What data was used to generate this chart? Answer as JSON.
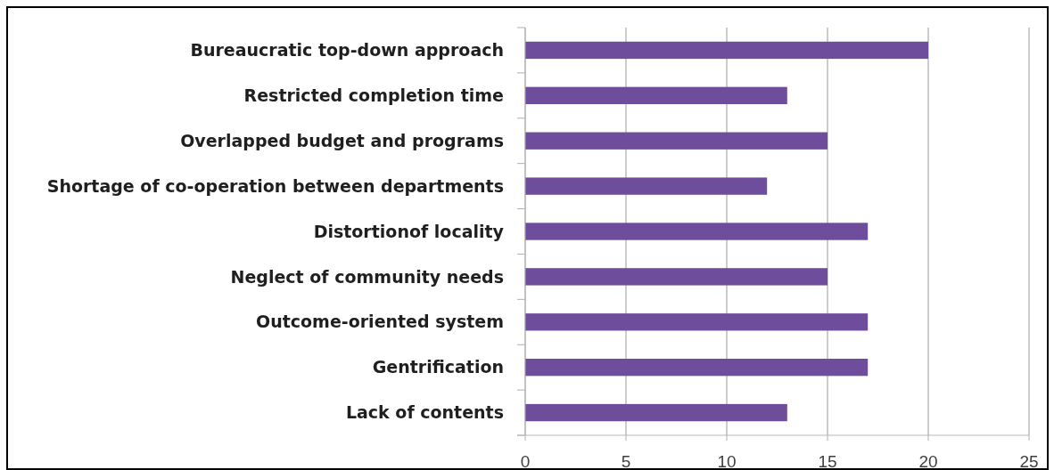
{
  "chart_data": {
    "type": "bar",
    "orientation": "horizontal",
    "categories": [
      "Bureaucratic top-down approach",
      "Restricted completion time",
      "Overlapped budget and programs",
      "Shortage of co-operation between departments",
      "Distortionof locality",
      "Neglect of community needs",
      "Outcome-oriented system",
      "Gentrification",
      "Lack of contents"
    ],
    "values": [
      20,
      13,
      15,
      12,
      17,
      15,
      17,
      17,
      13
    ],
    "color": "#6e4e9c",
    "xlim": [
      0,
      25
    ],
    "xticks": [
      0,
      5,
      10,
      15,
      20,
      25
    ],
    "grid": "x"
  }
}
